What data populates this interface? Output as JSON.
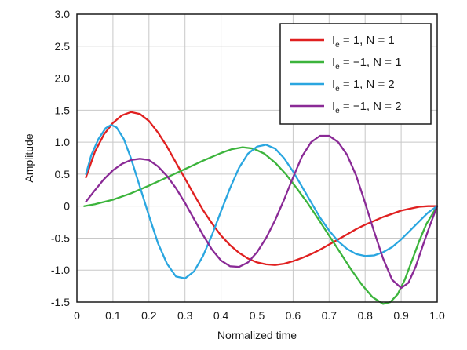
{
  "chart_data": {
    "type": "line",
    "xlabel": "Normalized time",
    "ylabel": "Amplitude",
    "xlim": [
      0,
      1.0
    ],
    "ylim": [
      -1.5,
      3.0
    ],
    "x_ticks": [
      "0",
      "0.1",
      "0.2",
      "0.3",
      "0.4",
      "0.5",
      "0.6",
      "0.7",
      "0.8",
      "0.9",
      "1.0"
    ],
    "y_ticks": [
      "3.0",
      "2.5",
      "2.0",
      "1.5",
      "1.0",
      "0.5",
      "0",
      "-0.5",
      "-1.0",
      "-1.5"
    ],
    "grid": true,
    "legend_position": "top-right",
    "series": [
      {
        "name": "I_e = 1, N = 1",
        "legend": {
          "main": "I",
          "sub": "e",
          "rest": " = 1, N = 1"
        },
        "color": "#e02020",
        "points": [
          [
            0.025,
            0.45
          ],
          [
            0.05,
            0.85
          ],
          [
            0.075,
            1.12
          ],
          [
            0.1,
            1.3
          ],
          [
            0.125,
            1.42
          ],
          [
            0.15,
            1.47
          ],
          [
            0.175,
            1.44
          ],
          [
            0.2,
            1.33
          ],
          [
            0.225,
            1.15
          ],
          [
            0.25,
            0.93
          ],
          [
            0.275,
            0.68
          ],
          [
            0.3,
            0.43
          ],
          [
            0.325,
            0.18
          ],
          [
            0.35,
            -0.06
          ],
          [
            0.375,
            -0.27
          ],
          [
            0.4,
            -0.46
          ],
          [
            0.425,
            -0.61
          ],
          [
            0.45,
            -0.73
          ],
          [
            0.475,
            -0.82
          ],
          [
            0.5,
            -0.88
          ],
          [
            0.525,
            -0.91
          ],
          [
            0.55,
            -0.92
          ],
          [
            0.575,
            -0.9
          ],
          [
            0.6,
            -0.86
          ],
          [
            0.625,
            -0.81
          ],
          [
            0.65,
            -0.75
          ],
          [
            0.675,
            -0.68
          ],
          [
            0.7,
            -0.6
          ],
          [
            0.725,
            -0.52
          ],
          [
            0.75,
            -0.44
          ],
          [
            0.775,
            -0.36
          ],
          [
            0.8,
            -0.29
          ],
          [
            0.825,
            -0.23
          ],
          [
            0.85,
            -0.17
          ],
          [
            0.875,
            -0.12
          ],
          [
            0.9,
            -0.07
          ],
          [
            0.925,
            -0.04
          ],
          [
            0.95,
            -0.01
          ],
          [
            0.975,
            0.0
          ],
          [
            1.0,
            0.0
          ]
        ]
      },
      {
        "name": "I_e = -1, N = 1",
        "legend": {
          "main": "I",
          "sub": "e",
          "rest": " = −1, N = 1"
        },
        "color": "#3cb43c",
        "points": [
          [
            0.02,
            0.0
          ],
          [
            0.05,
            0.03
          ],
          [
            0.1,
            0.1
          ],
          [
            0.15,
            0.2
          ],
          [
            0.2,
            0.32
          ],
          [
            0.25,
            0.45
          ],
          [
            0.3,
            0.58
          ],
          [
            0.35,
            0.71
          ],
          [
            0.4,
            0.83
          ],
          [
            0.43,
            0.89
          ],
          [
            0.46,
            0.92
          ],
          [
            0.49,
            0.9
          ],
          [
            0.52,
            0.82
          ],
          [
            0.55,
            0.68
          ],
          [
            0.58,
            0.5
          ],
          [
            0.61,
            0.28
          ],
          [
            0.64,
            0.05
          ],
          [
            0.67,
            -0.2
          ],
          [
            0.7,
            -0.46
          ],
          [
            0.73,
            -0.72
          ],
          [
            0.76,
            -0.98
          ],
          [
            0.79,
            -1.22
          ],
          [
            0.82,
            -1.42
          ],
          [
            0.85,
            -1.53
          ],
          [
            0.87,
            -1.5
          ],
          [
            0.89,
            -1.38
          ],
          [
            0.91,
            -1.15
          ],
          [
            0.93,
            -0.85
          ],
          [
            0.95,
            -0.55
          ],
          [
            0.97,
            -0.28
          ],
          [
            1.0,
            0.0
          ]
        ]
      },
      {
        "name": "I_e = 1, N = 2",
        "legend": {
          "main": "I",
          "sub": "e",
          "rest": " = 1, N = 2"
        },
        "color": "#2aa6e0",
        "points": [
          [
            0.025,
            0.5
          ],
          [
            0.04,
            0.8
          ],
          [
            0.06,
            1.05
          ],
          [
            0.08,
            1.22
          ],
          [
            0.095,
            1.27
          ],
          [
            0.11,
            1.23
          ],
          [
            0.13,
            1.05
          ],
          [
            0.15,
            0.75
          ],
          [
            0.175,
            0.3
          ],
          [
            0.2,
            -0.15
          ],
          [
            0.225,
            -0.58
          ],
          [
            0.25,
            -0.9
          ],
          [
            0.275,
            -1.1
          ],
          [
            0.3,
            -1.13
          ],
          [
            0.325,
            -1.02
          ],
          [
            0.35,
            -0.78
          ],
          [
            0.375,
            -0.45
          ],
          [
            0.4,
            -0.08
          ],
          [
            0.425,
            0.28
          ],
          [
            0.45,
            0.6
          ],
          [
            0.475,
            0.82
          ],
          [
            0.5,
            0.93
          ],
          [
            0.525,
            0.96
          ],
          [
            0.55,
            0.9
          ],
          [
            0.575,
            0.75
          ],
          [
            0.6,
            0.54
          ],
          [
            0.625,
            0.3
          ],
          [
            0.65,
            0.06
          ],
          [
            0.675,
            -0.18
          ],
          [
            0.7,
            -0.38
          ],
          [
            0.725,
            -0.55
          ],
          [
            0.75,
            -0.67
          ],
          [
            0.775,
            -0.75
          ],
          [
            0.8,
            -0.78
          ],
          [
            0.825,
            -0.77
          ],
          [
            0.85,
            -0.72
          ],
          [
            0.875,
            -0.64
          ],
          [
            0.9,
            -0.52
          ],
          [
            0.925,
            -0.38
          ],
          [
            0.95,
            -0.24
          ],
          [
            0.975,
            -0.1
          ],
          [
            1.0,
            0.0
          ]
        ]
      },
      {
        "name": "I_e = -1, N = 2",
        "legend": {
          "main": "I",
          "sub": "e",
          "rest": " = −1, N = 2"
        },
        "color": "#8a2a96",
        "points": [
          [
            0.025,
            0.07
          ],
          [
            0.05,
            0.25
          ],
          [
            0.075,
            0.42
          ],
          [
            0.1,
            0.56
          ],
          [
            0.125,
            0.66
          ],
          [
            0.15,
            0.72
          ],
          [
            0.175,
            0.74
          ],
          [
            0.2,
            0.72
          ],
          [
            0.225,
            0.62
          ],
          [
            0.25,
            0.47
          ],
          [
            0.275,
            0.28
          ],
          [
            0.3,
            0.05
          ],
          [
            0.325,
            -0.2
          ],
          [
            0.35,
            -0.45
          ],
          [
            0.375,
            -0.68
          ],
          [
            0.4,
            -0.85
          ],
          [
            0.425,
            -0.94
          ],
          [
            0.45,
            -0.95
          ],
          [
            0.475,
            -0.88
          ],
          [
            0.5,
            -0.72
          ],
          [
            0.525,
            -0.5
          ],
          [
            0.55,
            -0.22
          ],
          [
            0.575,
            0.1
          ],
          [
            0.6,
            0.45
          ],
          [
            0.625,
            0.78
          ],
          [
            0.65,
            1.0
          ],
          [
            0.675,
            1.1
          ],
          [
            0.7,
            1.1
          ],
          [
            0.725,
            1.0
          ],
          [
            0.75,
            0.8
          ],
          [
            0.775,
            0.48
          ],
          [
            0.8,
            0.05
          ],
          [
            0.825,
            -0.4
          ],
          [
            0.85,
            -0.82
          ],
          [
            0.875,
            -1.15
          ],
          [
            0.9,
            -1.28
          ],
          [
            0.92,
            -1.2
          ],
          [
            0.94,
            -0.95
          ],
          [
            0.96,
            -0.62
          ],
          [
            0.98,
            -0.3
          ],
          [
            1.0,
            0.0
          ]
        ]
      }
    ]
  }
}
